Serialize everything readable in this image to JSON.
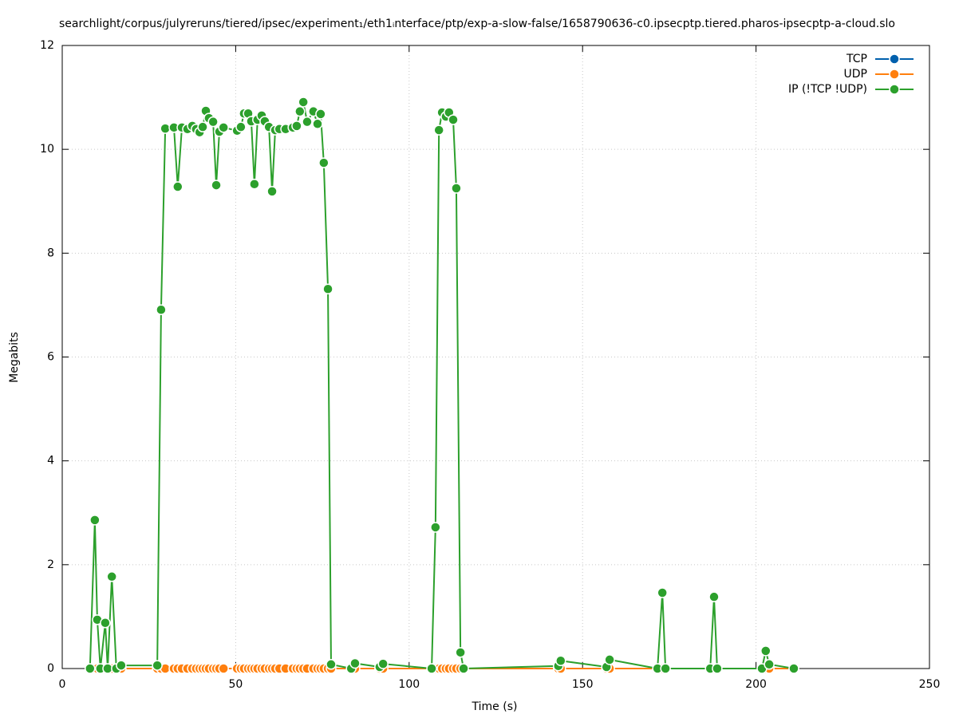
{
  "chart_data": {
    "type": "line",
    "title": "searchlight/corpus/julyreruns/tiered/ipsec/experiment₁/eth1ᵢnterface/ptp/exp-a-slow-false/1658790636-c0.ipsecptp.tiered.pharos-ipsecptp-a-cloud.slo",
    "xlabel": "Time (s)",
    "ylabel": "Megabits",
    "xlim": [
      0,
      250
    ],
    "xticks": [
      0,
      50,
      100,
      150,
      200,
      250
    ],
    "ylim": [
      0,
      12
    ],
    "yticks": [
      0,
      2,
      4,
      6,
      8,
      10,
      12
    ],
    "grid": true,
    "legend": "upper right",
    "x": [
      8,
      9.4,
      10.1,
      11.0,
      12.4,
      13.1,
      14.3,
      15.6,
      17,
      27.4,
      28.5,
      29.7,
      32.2,
      33.3,
      34.5,
      36.1,
      37.5,
      38.6,
      39.6,
      40.5,
      41.4,
      42.3,
      43.5,
      44.4,
      45.3,
      46.5,
      50.4,
      51.5,
      52.4,
      53.6,
      54.5,
      55.4,
      56.3,
      57.5,
      58.4,
      59.6,
      60.5,
      61.4,
      62.6,
      64.4,
      66.5,
      67.6,
      68.5,
      69.5,
      70.6,
      72.4,
      73.6,
      74.5,
      75.4,
      76.6,
      77.5,
      83.3,
      84.4,
      91.5,
      92.5,
      106.5,
      107.6,
      108.6,
      109.5,
      110.6,
      111.5,
      112.7,
      113.6,
      114.8,
      115.7,
      143,
      143.7,
      156.9,
      157.8,
      171.6,
      173,
      173.9,
      186.8,
      187.9,
      188.8,
      201.7,
      202.8,
      203.8,
      210.9
    ],
    "series": [
      {
        "name": "TCP",
        "color": "#0060ad",
        "values": [
          0,
          0,
          0,
          0,
          0,
          0,
          0,
          0,
          0,
          0,
          0,
          0,
          0,
          0,
          0,
          0,
          0,
          0,
          0,
          0,
          0,
          0,
          0,
          0,
          0,
          0,
          0,
          0,
          0,
          0,
          0,
          0,
          0,
          0,
          0,
          0,
          0,
          0,
          0,
          0,
          0,
          0,
          0,
          0,
          0,
          0,
          0,
          0,
          0,
          0,
          0,
          0,
          0,
          0,
          0,
          0,
          0,
          0,
          0,
          0,
          0,
          0,
          0,
          0,
          0,
          0,
          0,
          0,
          0,
          0,
          0,
          0,
          0,
          0,
          0,
          0,
          0,
          0,
          0
        ]
      },
      {
        "name": "UDP",
        "color": "#ff7f0e",
        "values": [
          0,
          0,
          0,
          0,
          0,
          0,
          0,
          0,
          0,
          0,
          0,
          0,
          0,
          0,
          0,
          0,
          0,
          0,
          0,
          0,
          0,
          0,
          0,
          0,
          0,
          0,
          0,
          0,
          0,
          0,
          0,
          0,
          0,
          0,
          0,
          0,
          0,
          0,
          0,
          0,
          0,
          0,
          0,
          0,
          0,
          0,
          0,
          0,
          0,
          0,
          0,
          0,
          0,
          0,
          0,
          0,
          0,
          0,
          0,
          0,
          0,
          0,
          0,
          0,
          0,
          0,
          0,
          0,
          0,
          0,
          0,
          0,
          0,
          0,
          0,
          0,
          0,
          0,
          0
        ]
      },
      {
        "name": "IP (!TCP  !UDP)",
        "color": "#2ca02c",
        "values": [
          0,
          2.86,
          0.94,
          0,
          0.88,
          0,
          1.77,
          0,
          0.06,
          0.06,
          6.91,
          10.4,
          10.42,
          9.28,
          10.42,
          10.39,
          10.45,
          10.39,
          10.33,
          10.43,
          10.74,
          10.6,
          10.53,
          9.31,
          10.34,
          10.42,
          10.36,
          10.43,
          10.69,
          10.69,
          10.54,
          9.33,
          10.57,
          10.65,
          10.54,
          10.43,
          9.19,
          10.37,
          10.39,
          10.39,
          10.42,
          10.45,
          10.73,
          10.91,
          10.53,
          10.73,
          10.49,
          10.68,
          9.74,
          7.31,
          0.08,
          0,
          0.1,
          0.03,
          0.09,
          0,
          2.72,
          10.37,
          10.71,
          10.63,
          10.71,
          10.57,
          9.25,
          0.31,
          0,
          0.05,
          0.15,
          0.03,
          0.17,
          0,
          1.46,
          0,
          0,
          1.38,
          0,
          0,
          0.34,
          0.08,
          0
        ]
      }
    ]
  }
}
